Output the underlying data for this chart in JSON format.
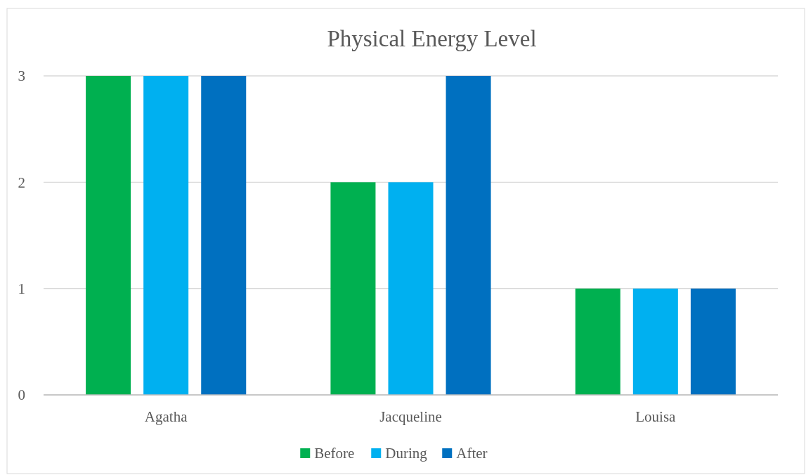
{
  "chart_data": {
    "type": "bar",
    "title": "Physical Energy Level",
    "categories": [
      "Agatha",
      "Jacqueline",
      "Louisa"
    ],
    "series": [
      {
        "name": "Before",
        "color": "#00b050",
        "values": [
          3,
          2,
          1
        ]
      },
      {
        "name": "During",
        "color": "#00b0f0",
        "values": [
          3,
          2,
          1
        ]
      },
      {
        "name": "After",
        "color": "#0070c0",
        "values": [
          3,
          3,
          1
        ]
      }
    ],
    "ylim": [
      0,
      3
    ],
    "yticks": [
      0,
      1,
      2,
      3
    ],
    "grid": "y",
    "legend": "bottom"
  }
}
